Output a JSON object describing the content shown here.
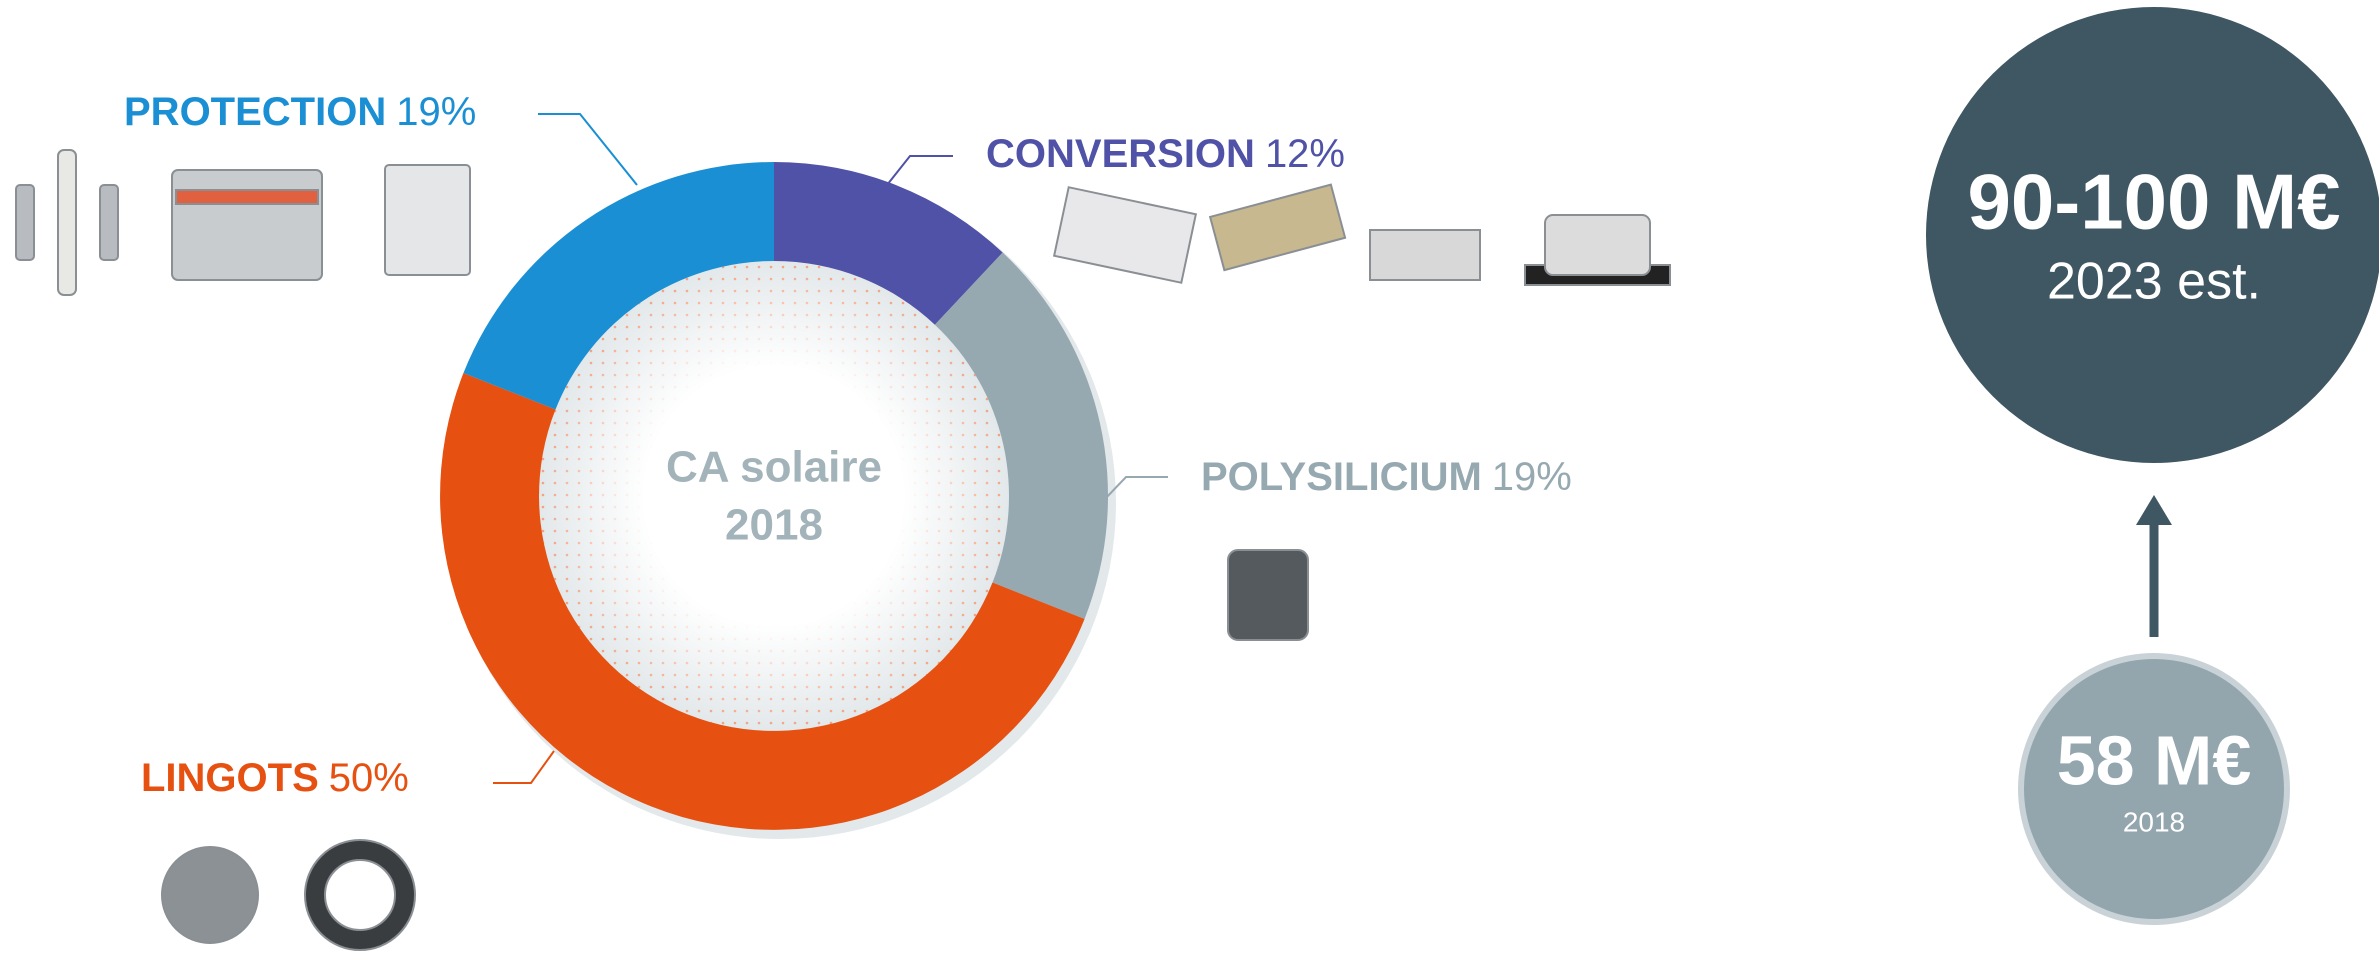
{
  "chart_data": {
    "type": "pie",
    "donut": true,
    "center_label": [
      "CA solaire",
      "2018"
    ],
    "categories": [
      "CONVERSION",
      "POLYSILICIUM",
      "LINGOTS",
      "PROTECTION"
    ],
    "values": [
      12,
      19,
      50,
      19
    ],
    "value_labels": [
      "12%",
      "19%",
      "50%",
      "19%"
    ],
    "colors": [
      "#4f52a6",
      "#96a8b0",
      "#e65010",
      "#1a8fd4"
    ]
  },
  "growth": {
    "forecast": {
      "value": "90-100 M€",
      "year": "2023 est."
    },
    "current": {
      "value": "58 M€",
      "year": "2018"
    }
  }
}
